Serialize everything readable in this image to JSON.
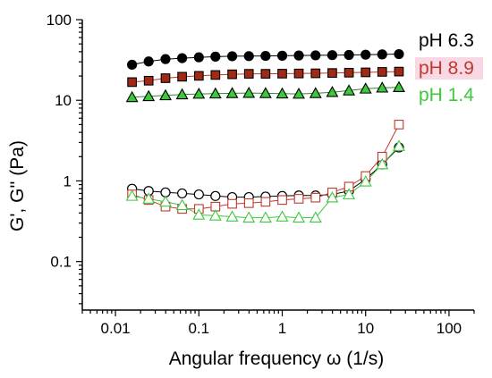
{
  "chart_data": {
    "type": "scatter",
    "xlabel": "Angular frequency ω (1/s)",
    "ylabel": "G', G'' (Pa)",
    "xscale": "log",
    "yscale": "log",
    "xlim": [
      0.004,
      200
    ],
    "ylim": [
      0.025,
      100
    ],
    "x_ticks": [
      "0.01",
      "0.1",
      "1",
      "10",
      "100"
    ],
    "y_ticks": [
      "0.1",
      "1",
      "10",
      "100"
    ],
    "grid": false,
    "legend": "right, inline text labels",
    "series": [
      {
        "name": "pH 6.3",
        "modulus": "G'",
        "marker": "circle",
        "filled": true,
        "color": "#000000",
        "fill": "#000000",
        "x": [
          0.0158,
          0.025,
          0.0398,
          0.063,
          0.1,
          0.158,
          0.251,
          0.398,
          0.631,
          1.0,
          1.58,
          2.51,
          3.98,
          6.31,
          10.0,
          15.8,
          25.1
        ],
        "y": [
          27.6,
          30.3,
          32.4,
          33.3,
          34.1,
          34.8,
          35.2,
          35.3,
          35.5,
          35.7,
          35.9,
          36.1,
          36.3,
          36.5,
          36.8,
          37.1,
          37.4
        ]
      },
      {
        "name": "pH 8.9",
        "modulus": "G'",
        "marker": "square",
        "filled": true,
        "color": "#c0392b",
        "fill": "#a02a16",
        "x": [
          0.0158,
          0.025,
          0.0398,
          0.063,
          0.1,
          0.158,
          0.251,
          0.398,
          0.631,
          1.0,
          1.58,
          2.51,
          3.98,
          6.31,
          10.0,
          15.8,
          25.1
        ],
        "y": [
          16.8,
          17.5,
          18.8,
          19.6,
          20.1,
          20.6,
          21.0,
          21.3,
          21.3,
          21.4,
          21.5,
          21.6,
          21.8,
          22.0,
          22.2,
          22.5,
          22.7
        ]
      },
      {
        "name": "pH 1.4",
        "modulus": "G'",
        "marker": "triangle",
        "filled": true,
        "color": "#2e8b2e",
        "fill": "#3cc83c",
        "x": [
          0.0158,
          0.025,
          0.0398,
          0.063,
          0.1,
          0.158,
          0.251,
          0.398,
          0.631,
          1.0,
          1.58,
          2.51,
          3.98,
          6.31,
          10.0,
          15.8,
          25.1
        ],
        "y": [
          10.9,
          11.2,
          11.5,
          11.8,
          12.0,
          12.1,
          12.2,
          12.3,
          12.2,
          12.1,
          12.0,
          12.2,
          12.6,
          13.2,
          13.9,
          14.3,
          14.5
        ]
      },
      {
        "name": "pH 6.3",
        "modulus": "G''",
        "marker": "circle",
        "filled": false,
        "color": "#000000",
        "x": [
          0.0158,
          0.025,
          0.0398,
          0.063,
          0.1,
          0.158,
          0.251,
          0.398,
          0.631,
          1.0,
          1.58,
          2.51,
          3.98,
          6.31,
          10.0,
          15.8,
          25.1
        ],
        "y": [
          0.8,
          0.75,
          0.72,
          0.7,
          0.68,
          0.65,
          0.63,
          0.63,
          0.64,
          0.65,
          0.66,
          0.66,
          0.68,
          0.75,
          1.05,
          1.6,
          2.6
        ]
      },
      {
        "name": "pH 8.9",
        "modulus": "G''",
        "marker": "square",
        "filled": false,
        "color": "#c0392b",
        "x": [
          0.0158,
          0.025,
          0.0398,
          0.063,
          0.1,
          0.158,
          0.251,
          0.398,
          0.631,
          1.0,
          1.58,
          2.51,
          3.98,
          6.31,
          10.0,
          15.8,
          25.1
        ],
        "y": [
          0.68,
          0.58,
          0.48,
          0.45,
          0.45,
          0.48,
          0.52,
          0.53,
          0.55,
          0.58,
          0.6,
          0.62,
          0.72,
          0.85,
          1.15,
          2.0,
          5.0
        ]
      },
      {
        "name": "pH 1.4",
        "modulus": "G''",
        "marker": "triangle",
        "filled": false,
        "color": "#3cc83c",
        "x": [
          0.0158,
          0.025,
          0.0398,
          0.063,
          0.1,
          0.158,
          0.251,
          0.398,
          0.631,
          1.0,
          1.58,
          2.51,
          3.98,
          6.31,
          10.0,
          15.8,
          25.1
        ],
        "y": [
          0.65,
          0.6,
          0.55,
          0.5,
          0.38,
          0.37,
          0.36,
          0.35,
          0.35,
          0.36,
          0.35,
          0.35,
          0.62,
          0.68,
          0.98,
          1.6,
          2.7
        ]
      }
    ],
    "series_labels": [
      {
        "text": "pH 6.3",
        "color": "#000000",
        "highlight": ""
      },
      {
        "text": "pH 8.9",
        "color": "#c0392b",
        "highlight": "#f8d8e4"
      },
      {
        "text": "pH 1.4",
        "color": "#3cc83c",
        "highlight": ""
      }
    ]
  }
}
